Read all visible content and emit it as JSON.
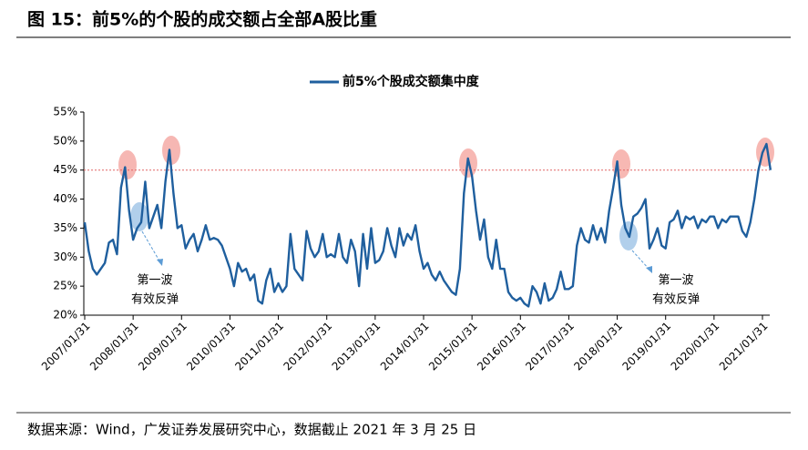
{
  "chart_data": {
    "type": "line",
    "title": "图 15：前5%的个股的成交额占全部A股比重",
    "source": "数据来源：Wind，广发证券发展研究中心，数据截止 2021 年 3 月 25 日",
    "x": [
      "2007/01/31",
      "2007/02/28",
      "2007/03/31",
      "2007/04/30",
      "2007/05/31",
      "2007/06/30",
      "2007/07/31",
      "2007/08/31",
      "2007/09/30",
      "2007/10/31",
      "2007/11/30",
      "2007/12/31",
      "2008/01/31",
      "2008/02/29",
      "2008/03/31",
      "2008/04/30",
      "2008/05/31",
      "2008/06/30",
      "2008/07/31",
      "2008/08/31",
      "2008/09/30",
      "2008/10/31",
      "2008/11/30",
      "2008/12/31",
      "2009/01/31",
      "2009/02/28",
      "2009/03/31",
      "2009/04/30",
      "2009/05/31",
      "2009/06/30",
      "2009/07/31",
      "2009/08/31",
      "2009/09/30",
      "2009/10/31",
      "2009/11/30",
      "2009/12/31",
      "2010/01/31",
      "2010/02/28",
      "2010/03/31",
      "2010/04/30",
      "2010/05/31",
      "2010/06/30",
      "2010/07/31",
      "2010/08/31",
      "2010/09/30",
      "2010/10/31",
      "2010/11/30",
      "2010/12/31",
      "2011/01/31",
      "2011/02/28",
      "2011/03/31",
      "2011/04/30",
      "2011/05/31",
      "2011/06/30",
      "2011/07/31",
      "2011/08/31",
      "2011/09/30",
      "2011/10/31",
      "2011/11/30",
      "2011/12/31",
      "2012/01/31",
      "2012/02/29",
      "2012/03/31",
      "2012/04/30",
      "2012/05/31",
      "2012/06/30",
      "2012/07/31",
      "2012/08/31",
      "2012/09/30",
      "2012/10/31",
      "2012/11/30",
      "2012/12/31",
      "2013/01/31",
      "2013/02/28",
      "2013/03/31",
      "2013/04/30",
      "2013/05/31",
      "2013/06/30",
      "2013/07/31",
      "2013/08/31",
      "2013/09/30",
      "2013/10/31",
      "2013/11/30",
      "2013/12/31",
      "2014/01/31",
      "2014/02/28",
      "2014/03/31",
      "2014/04/30",
      "2014/05/31",
      "2014/06/30",
      "2014/07/31",
      "2014/08/31",
      "2014/09/30",
      "2014/10/31",
      "2014/11/30",
      "2014/12/31",
      "2015/01/31",
      "2015/02/28",
      "2015/03/31",
      "2015/04/30",
      "2015/05/31",
      "2015/06/30",
      "2015/07/31",
      "2015/08/31",
      "2015/09/30",
      "2015/10/31",
      "2015/11/30",
      "2015/12/31",
      "2016/01/31",
      "2016/02/29",
      "2016/03/31",
      "2016/04/30",
      "2016/05/31",
      "2016/06/30",
      "2016/07/31",
      "2016/08/31",
      "2016/09/30",
      "2016/10/31",
      "2016/11/30",
      "2016/12/31",
      "2017/01/31",
      "2017/02/28",
      "2017/03/31",
      "2017/04/30",
      "2017/05/31",
      "2017/06/30",
      "2017/07/31",
      "2017/08/31",
      "2017/09/30",
      "2017/10/31",
      "2017/11/30",
      "2017/12/31",
      "2018/01/31",
      "2018/02/28",
      "2018/03/31",
      "2018/04/30",
      "2018/05/31",
      "2018/06/30",
      "2018/07/31",
      "2018/08/31",
      "2018/09/30",
      "2018/10/31",
      "2018/11/30",
      "2018/12/31",
      "2019/01/31",
      "2019/02/28",
      "2019/03/31",
      "2019/04/30",
      "2019/05/31",
      "2019/06/30",
      "2019/07/31",
      "2019/08/31",
      "2019/09/30",
      "2019/10/31",
      "2019/11/30",
      "2019/12/31",
      "2020/01/31",
      "2020/02/29",
      "2020/03/31",
      "2020/04/30",
      "2020/05/31",
      "2020/06/30",
      "2020/07/31",
      "2020/08/31",
      "2020/09/30",
      "2020/10/31",
      "2020/11/30",
      "2020/12/31",
      "2021/01/31",
      "2021/02/28",
      "2021/03/31"
    ],
    "series": [
      {
        "name": "前5%个股成交额集中度",
        "color": "#1f5f9e",
        "values": [
          36,
          31,
          28,
          27,
          28,
          29,
          32.5,
          33,
          30.5,
          42,
          45.5,
          38,
          33,
          35,
          36,
          43,
          35,
          37,
          39,
          35,
          43,
          48.5,
          41,
          35,
          35.5,
          31.5,
          33,
          34,
          31,
          33,
          35.5,
          33,
          33.3,
          33,
          32,
          30,
          28,
          25,
          29,
          27.5,
          28,
          26,
          27,
          22.5,
          22,
          26,
          28,
          24,
          25.5,
          24,
          25,
          34,
          28,
          27,
          26,
          34.5,
          31.5,
          30,
          31,
          34,
          30,
          30.5,
          30,
          34,
          30,
          29,
          33,
          31,
          25,
          34,
          28,
          35,
          29,
          29.5,
          31,
          35,
          32,
          30,
          35,
          32,
          34,
          33,
          35.5,
          31,
          28,
          29,
          27,
          26,
          27.5,
          26,
          25,
          24,
          23.5,
          28,
          41,
          47,
          44,
          38,
          33,
          36.5,
          30,
          28,
          33,
          28,
          28,
          24,
          23,
          22.5,
          23,
          22,
          21.5,
          25,
          24,
          22,
          25.5,
          22.5,
          23,
          24.5,
          27.5,
          24.5,
          24.5,
          25,
          32,
          35,
          33,
          32.5,
          35.5,
          33,
          35,
          32.5,
          38,
          42,
          46.5,
          39,
          35,
          33.5,
          37,
          37.5,
          38.5,
          40,
          31.5,
          33,
          35,
          32,
          31.5,
          36,
          36.5,
          38,
          35,
          37,
          36.5,
          37,
          35,
          36.5,
          36,
          37,
          37,
          35,
          36.5,
          36,
          37,
          37,
          37,
          34.5,
          33.5,
          36,
          40,
          45,
          48,
          49.5,
          45
        ]
      }
    ],
    "ylim": [
      20,
      55
    ],
    "yticks": [
      {
        "value": 20,
        "label": "20%"
      },
      {
        "value": 25,
        "label": "25%"
      },
      {
        "value": 30,
        "label": "30%"
      },
      {
        "value": 35,
        "label": "35%"
      },
      {
        "value": 40,
        "label": "40%"
      },
      {
        "value": 45,
        "label": "45%"
      },
      {
        "value": 50,
        "label": "50%"
      },
      {
        "value": 55,
        "label": "55%"
      }
    ],
    "xticks": [
      "2007/01/31",
      "2008/01/31",
      "2009/01/31",
      "2010/01/31",
      "2011/01/31",
      "2012/01/31",
      "2013/01/31",
      "2014/01/31",
      "2015/01/31",
      "2016/01/31",
      "2017/01/31",
      "2018/01/31",
      "2019/01/31",
      "2020/01/31",
      "2021/01/31"
    ],
    "reference_line": {
      "value": 45,
      "color": "#e06666"
    },
    "annotations": [
      {
        "lines": [
          "第一波",
          "有效反弹"
        ]
      },
      {
        "lines": [
          "第一波",
          "有效反弹"
        ]
      }
    ]
  }
}
